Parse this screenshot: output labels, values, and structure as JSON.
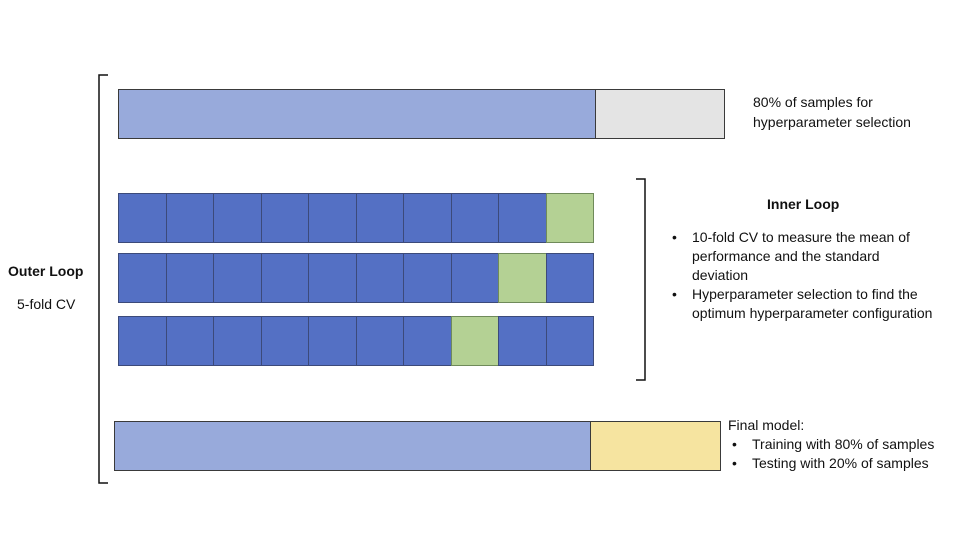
{
  "outer": {
    "title": "Outer Loop",
    "subtitle": "5-fold CV"
  },
  "top_bar": {
    "label_line1": "80% of samples for",
    "label_line2": "hyperparameter selection",
    "train_color": "#98aadb",
    "holdout_color": "#e4e4e4"
  },
  "inner": {
    "title": "Inner Loop",
    "bullets": [
      {
        "line1": "10-fold CV to measure the mean of",
        "line2": "performance and the standard",
        "line3": "deviation"
      },
      {
        "line1": "Hyperparameter selection to find the",
        "line2": "optimum hyperparameter configuration"
      }
    ],
    "folds": 10,
    "validation_fold_index": [
      9,
      8,
      7
    ],
    "fold_color": "#5470c4",
    "validation_color": "#b4d194"
  },
  "final": {
    "title": "Final model:",
    "bullets": [
      "Training with 80% of samples",
      "Testing with 20% of samples"
    ],
    "train_color": "#98aadb",
    "test_color": "#f6e4a0"
  }
}
